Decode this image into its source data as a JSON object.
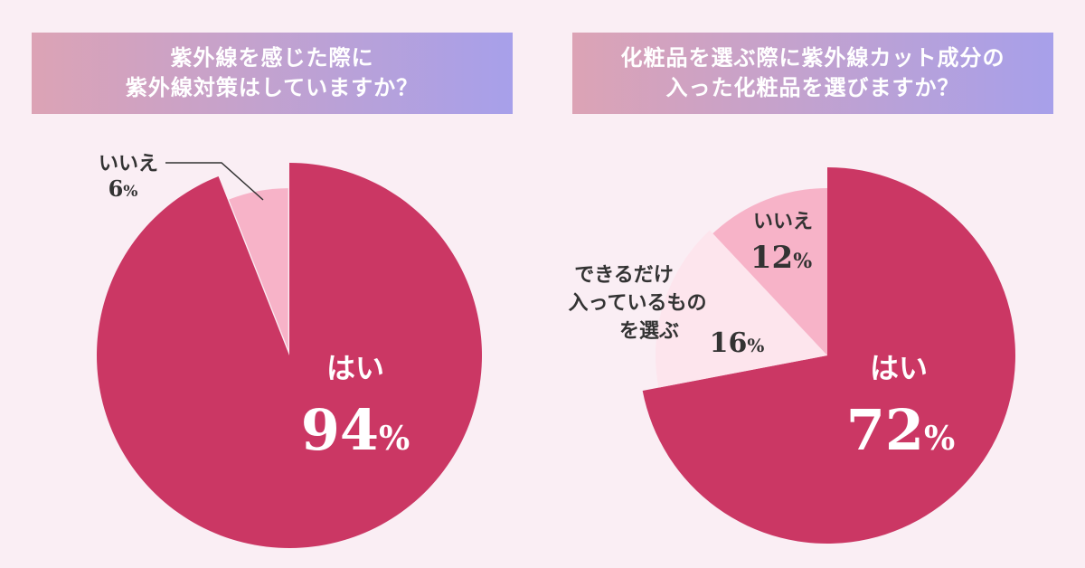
{
  "charts": [
    {
      "title_lines": [
        "紫外線を感じた際に",
        "紫外線対策はしていますか？"
      ]
    },
    {
      "title_lines": [
        "化粧品を選ぶ際に紫外線カット成分の",
        "入った化粧品を選びますか？"
      ]
    }
  ],
  "chart_data": [
    {
      "type": "pie",
      "title": "紫外線を感じた際に紫外線対策はしていますか？",
      "unit": "%",
      "slices": [
        {
          "label": "はい",
          "value": 94,
          "color": "#cb3764"
        },
        {
          "label": "いいえ",
          "value": 6,
          "color": "#f7b3c8"
        }
      ]
    },
    {
      "type": "pie",
      "title": "化粧品を選ぶ際に紫外線カット成分の入った化粧品を選びますか？",
      "unit": "%",
      "slices": [
        {
          "label": "はい",
          "value": 72,
          "color": "#cb3764"
        },
        {
          "label": "できるだけ入っているものを選ぶ",
          "label_lines": [
            "できるだけ",
            "入っているもの",
            "を選ぶ"
          ],
          "value": 16,
          "color": "#fde5ed"
        },
        {
          "label": "いいえ",
          "value": 12,
          "color": "#f7b3c8"
        }
      ]
    }
  ]
}
